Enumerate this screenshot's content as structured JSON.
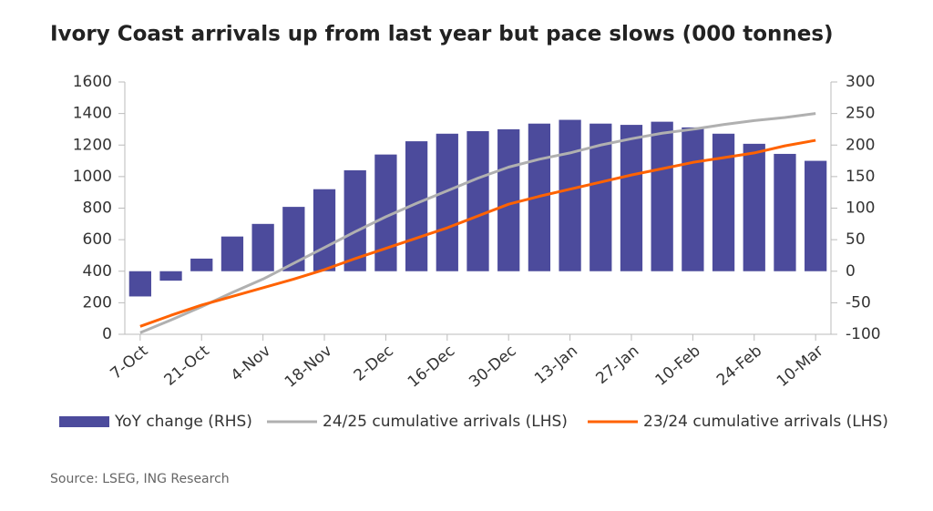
{
  "chart_data": {
    "type": "combo",
    "title": "Ivory Coast arrivals up from last year but pace slows (000 tonnes)",
    "source": "Source: LSEG, ING Research",
    "categories": [
      "7-Oct",
      null,
      "21-Oct",
      null,
      "4-Nov",
      null,
      "18-Nov",
      null,
      "2-Dec",
      null,
      "16-Dec",
      null,
      "30-Dec",
      null,
      "13-Jan",
      null,
      "27-Jan",
      null,
      "10-Feb",
      null,
      "24-Feb",
      null,
      "10-Mar"
    ],
    "series": [
      {
        "name": "YoY change (RHS)",
        "type": "bar",
        "axis": "y2",
        "color": "#4c4b9c",
        "values": [
          -40,
          -15,
          20,
          55,
          75,
          102,
          130,
          160,
          185,
          206,
          218,
          222,
          225,
          234,
          240,
          234,
          232,
          237,
          228,
          218,
          202,
          186,
          175
        ]
      },
      {
        "name": "24/25 cumulative arrivals (LHS)",
        "type": "line",
        "axis": "y",
        "color": "#b0b0b0",
        "values": [
          10,
          90,
          175,
          265,
          350,
          450,
          550,
          650,
          745,
          830,
          910,
          990,
          1060,
          1110,
          1150,
          1200,
          1240,
          1275,
          1300,
          1330,
          1355,
          1375,
          1400
        ]
      },
      {
        "name": "23/24 cumulative arrivals (LHS)",
        "type": "line",
        "axis": "y",
        "color": "#ff6200",
        "values": [
          50,
          120,
          185,
          240,
          295,
          350,
          410,
          480,
          545,
          610,
          675,
          750,
          825,
          875,
          920,
          965,
          1010,
          1050,
          1090,
          1120,
          1150,
          1195,
          1230
        ]
      }
    ],
    "ylim": [
      0,
      1600
    ],
    "yticks": [
      0,
      200,
      400,
      600,
      800,
      1000,
      1200,
      1400,
      1600
    ],
    "y2lim": [
      -100,
      300
    ],
    "y2ticks": [
      -100,
      -50,
      0,
      50,
      100,
      150,
      200,
      250,
      300
    ],
    "grid": false,
    "legend": "bottom"
  }
}
